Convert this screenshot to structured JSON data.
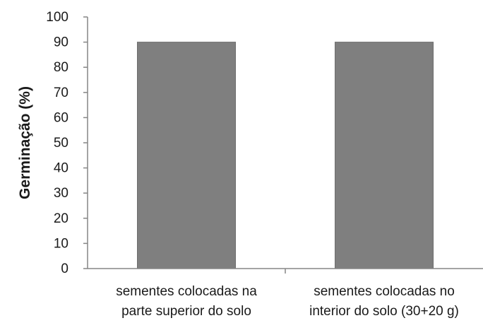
{
  "chart_data": {
    "type": "bar",
    "title": "",
    "xlabel": "",
    "ylabel": "Germinação (%)",
    "ylim": [
      0,
      100
    ],
    "yticks": [
      0,
      10,
      20,
      30,
      40,
      50,
      60,
      70,
      80,
      90,
      100
    ],
    "grid": false,
    "categories": [
      [
        "sementes colocadas na",
        "parte superior do solo"
      ],
      [
        "sementes colocadas no",
        "interior do solo (30+20 g)"
      ]
    ],
    "values": [
      90,
      90
    ],
    "bar_color": "#7f7f7f",
    "axis_color": "#868686"
  }
}
